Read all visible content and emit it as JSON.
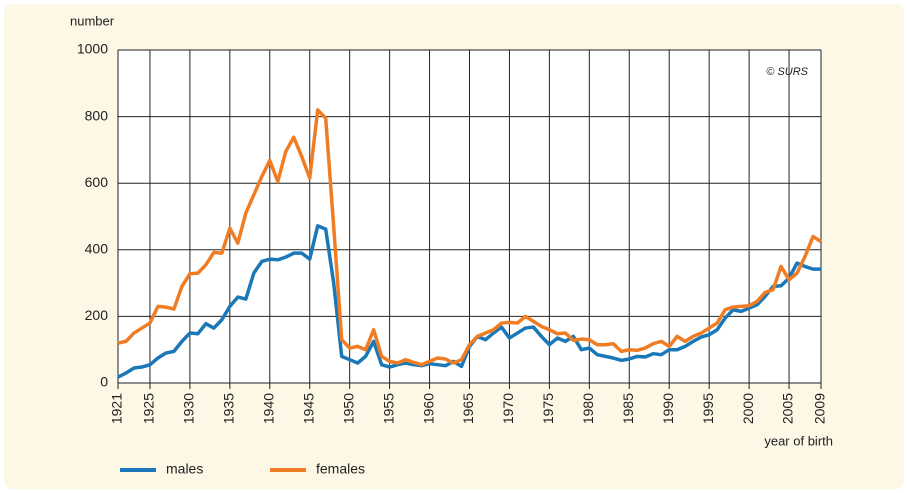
{
  "chart_data": {
    "type": "line",
    "ylabel": "number",
    "xlabel": "year of birth",
    "annotation": "© SURS",
    "x": [
      1921,
      1922,
      1923,
      1924,
      1925,
      1926,
      1927,
      1928,
      1929,
      1930,
      1931,
      1932,
      1933,
      1934,
      1935,
      1936,
      1937,
      1938,
      1939,
      1940,
      1941,
      1942,
      1943,
      1944,
      1945,
      1946,
      1947,
      1948,
      1949,
      1950,
      1951,
      1952,
      1953,
      1954,
      1955,
      1956,
      1957,
      1958,
      1959,
      1960,
      1961,
      1962,
      1963,
      1964,
      1965,
      1966,
      1967,
      1968,
      1969,
      1970,
      1971,
      1972,
      1973,
      1974,
      1975,
      1976,
      1977,
      1978,
      1979,
      1980,
      1981,
      1982,
      1983,
      1984,
      1985,
      1986,
      1987,
      1988,
      1989,
      1990,
      1991,
      1992,
      1993,
      1994,
      1995,
      1996,
      1997,
      1998,
      1999,
      2000,
      2001,
      2002,
      2003,
      2004,
      2005,
      2006,
      2007,
      2008,
      2009
    ],
    "series": [
      {
        "name": "males",
        "color": "#1a78b8",
        "values": [
          18,
          30,
          45,
          48,
          55,
          75,
          90,
          95,
          125,
          150,
          148,
          178,
          165,
          190,
          230,
          258,
          252,
          330,
          365,
          372,
          370,
          378,
          390,
          390,
          372,
          472,
          462,
          300,
          80,
          70,
          60,
          80,
          125,
          55,
          48,
          55,
          60,
          55,
          52,
          58,
          55,
          52,
          65,
          50,
          110,
          140,
          130,
          150,
          168,
          135,
          150,
          165,
          168,
          140,
          115,
          135,
          125,
          140,
          100,
          105,
          85,
          80,
          75,
          68,
          72,
          80,
          78,
          88,
          85,
          100,
          100,
          110,
          125,
          138,
          145,
          160,
          195,
          220,
          215,
          225,
          235,
          260,
          290,
          292,
          315,
          360,
          350,
          342,
          342
        ]
      },
      {
        "name": "females",
        "color": "#f07d24",
        "values": [
          120,
          125,
          150,
          165,
          180,
          230,
          228,
          222,
          290,
          328,
          330,
          355,
          392,
          390,
          465,
          420,
          510,
          565,
          620,
          668,
          605,
          695,
          738,
          680,
          615,
          820,
          795,
          470,
          130,
          105,
          110,
          100,
          160,
          80,
          65,
          60,
          70,
          62,
          55,
          65,
          75,
          72,
          60,
          70,
          115,
          140,
          150,
          160,
          180,
          182,
          180,
          200,
          185,
          170,
          160,
          148,
          150,
          128,
          132,
          130,
          115,
          115,
          118,
          95,
          100,
          98,
          105,
          118,
          125,
          110,
          140,
          125,
          140,
          150,
          165,
          180,
          220,
          228,
          230,
          232,
          245,
          272,
          280,
          350,
          310,
          330,
          380,
          440,
          425
        ]
      }
    ],
    "xlim": [
      1921,
      2009
    ],
    "ylim": [
      0,
      1000
    ],
    "xticks": [
      1921,
      1925,
      1930,
      1935,
      1940,
      1945,
      1950,
      1955,
      1960,
      1965,
      1970,
      1975,
      1980,
      1985,
      1990,
      1995,
      2000,
      2005,
      2009
    ],
    "yticks": [
      0,
      200,
      400,
      600,
      800,
      1000
    ],
    "grid": true
  }
}
